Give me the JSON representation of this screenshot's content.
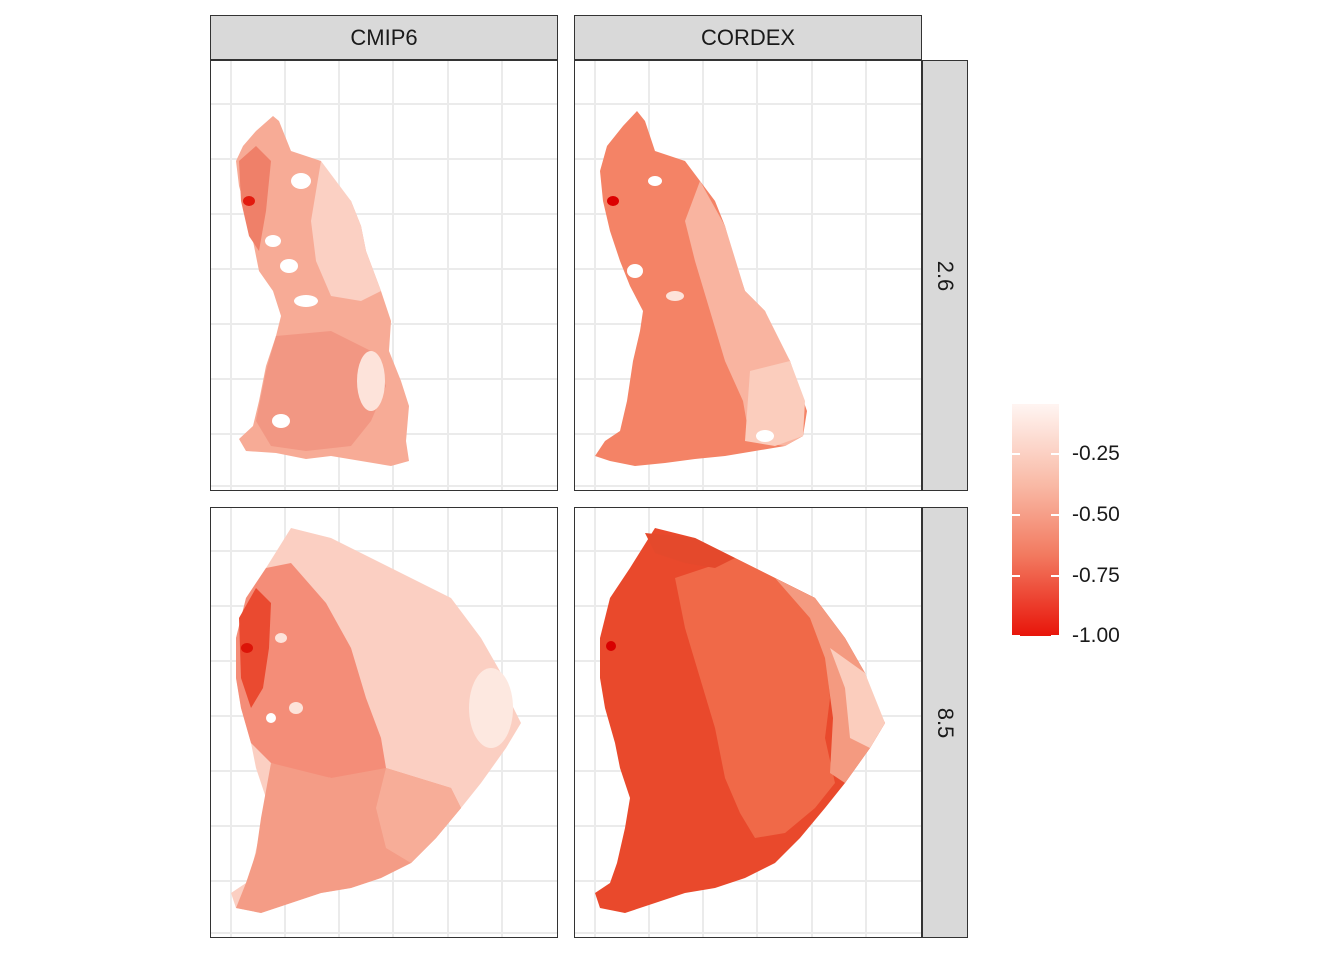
{
  "facets": {
    "columns": [
      "CMIP6",
      "CORDEX"
    ],
    "rows": [
      "2.6",
      "8.5"
    ]
  },
  "legend": {
    "labels": [
      "-0.25",
      "-0.50",
      "-0.75",
      "-1.00"
    ],
    "values": [
      -0.25,
      -0.5,
      -0.75,
      -1.0
    ],
    "range": [
      -1.0,
      -0.05
    ],
    "colors": {
      "low": "#e8150a",
      "mid": "#f27a60",
      "high": "#fff5f2"
    }
  },
  "panels": [
    {
      "id": "cmip6-2.6",
      "column": "CMIP6",
      "row": "2.6",
      "mean_value": -0.35,
      "max_value": -0.95
    },
    {
      "id": "cordex-2.6",
      "column": "CORDEX",
      "row": "2.6",
      "mean_value": -0.55,
      "max_value": -1.0
    },
    {
      "id": "cmip6-8.5",
      "column": "CMIP6",
      "row": "8.5",
      "mean_value": -0.5,
      "max_value": -0.95
    },
    {
      "id": "cordex-8.5",
      "column": "CORDEX",
      "row": "8.5",
      "mean_value": -0.75,
      "max_value": -1.0
    }
  ]
}
